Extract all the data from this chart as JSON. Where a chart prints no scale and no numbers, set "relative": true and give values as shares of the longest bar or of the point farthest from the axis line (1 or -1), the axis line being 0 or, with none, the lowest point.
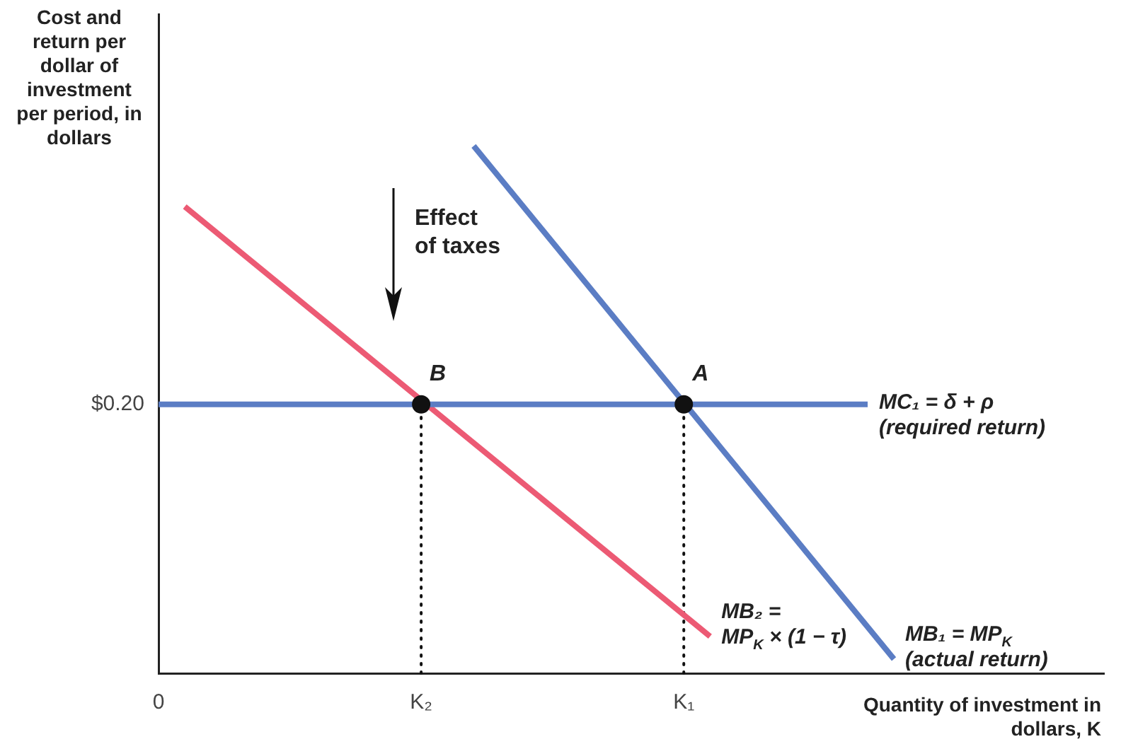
{
  "chart_data": {
    "type": "line",
    "relative": true,
    "ylabel": "Cost and return per dollar of investment per period, in dollars",
    "xlabel": "Quantity of investment in dollars, K",
    "categories": [
      "0",
      null,
      null,
      null,
      null,
      null,
      null,
      null,
      null,
      null,
      "K₂",
      null,
      null,
      null,
      null,
      null,
      null,
      null,
      null,
      null,
      "K₁",
      null,
      null,
      null,
      null,
      null,
      null,
      null,
      null,
      null,
      null,
      null,
      null,
      null,
      null,
      null,
      null
    ],
    "grid": false,
    "legend": false,
    "marker": "none",
    "line_style": "solid",
    "series": [
      {
        "name": "MC₁ = δ + ρ\n(required return)",
        "color": "#5b7dc4",
        "values": [
          0.51,
          null,
          null,
          null,
          null,
          null,
          null,
          null,
          null,
          null,
          null,
          null,
          null,
          null,
          null,
          null,
          null,
          null,
          null,
          null,
          null,
          null,
          null,
          null,
          null,
          null,
          null,
          0.51,
          null,
          null,
          null,
          null,
          null,
          null,
          null,
          null,
          null
        ]
      },
      {
        "name": "MB₁ = MP$_{K}$\n(actual return)",
        "color": "#5b7dc4",
        "values": [
          null,
          null,
          null,
          null,
          null,
          null,
          null,
          null,
          null,
          null,
          null,
          null,
          1,
          null,
          null,
          null,
          null,
          null,
          null,
          null,
          null,
          null,
          null,
          null,
          null,
          null,
          null,
          null,
          0.027,
          null,
          null,
          null,
          null,
          null,
          null,
          null,
          null
        ]
      },
      {
        "name": "MB₂ =\nMP$_{K}$ × (1 − τ)",
        "color": "#ec5a74",
        "values": [
          null,
          0.885,
          null,
          null,
          null,
          null,
          null,
          null,
          null,
          null,
          null,
          null,
          null,
          null,
          null,
          null,
          null,
          null,
          null,
          null,
          null,
          0.07,
          null,
          null,
          null,
          null,
          null,
          null,
          null,
          null,
          null,
          null,
          null,
          null,
          null,
          null,
          null
        ]
      },
      {
        "type": "lollipop",
        "marker": "circle",
        "line_style": "dotted",
        "color": "#111111",
        "values": [
          null,
          null,
          null,
          null,
          null,
          null,
          null,
          null,
          null,
          null,
          0.51,
          null,
          null,
          null,
          null,
          null,
          null,
          null,
          null,
          null,
          0.51,
          null,
          null,
          null,
          null,
          null,
          null,
          null,
          null,
          null,
          null,
          null,
          null,
          null,
          null,
          null,
          null
        ]
      }
    ],
    "annotations": [
      {
        "text": "B",
        "x": "K₂",
        "y": 0.51
      },
      {
        "text": "A",
        "x": "K₁",
        "y": 0.51
      },
      "$0.20",
      "Effect\nof taxes"
    ]
  }
}
